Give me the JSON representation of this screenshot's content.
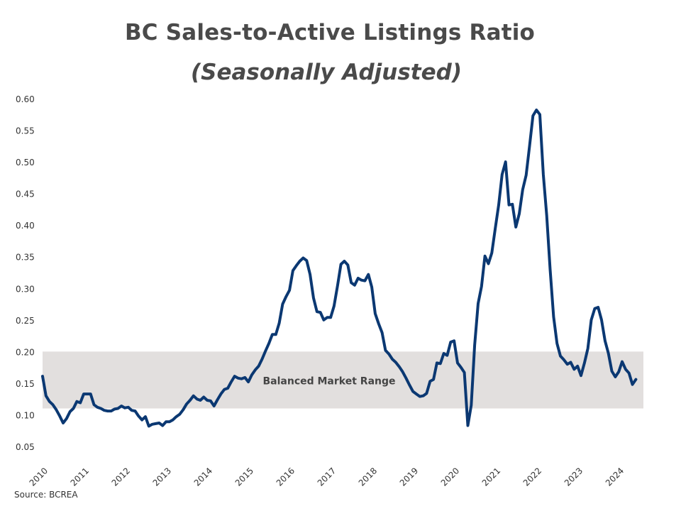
{
  "colors": {
    "line": "#0b3872",
    "band": "#e2dfde",
    "text": "#4a4a4a",
    "axis_text": "#333333"
  },
  "chart_data": {
    "type": "line",
    "title": "BC Sales-to-Active Listings Ratio",
    "subtitle": "(Seasonally Adjusted)",
    "xlabel": "",
    "ylabel": "",
    "ylim": [
      0.05,
      0.6
    ],
    "yticks": [
      "0.05",
      "0.10",
      "0.15",
      "0.20",
      "0.25",
      "0.30",
      "0.35",
      "0.40",
      "0.45",
      "0.50",
      "0.55",
      "0.60"
    ],
    "xlim": [
      2010.0,
      2024.6
    ],
    "xticks": [
      "2010",
      "2011",
      "2012",
      "2013",
      "2014",
      "2015",
      "2016",
      "2017",
      "2018",
      "2019",
      "2020",
      "2021",
      "2022",
      "2023",
      "2024"
    ],
    "grid": false,
    "legend": "none",
    "band": {
      "label": "Balanced Market Range",
      "y_range": [
        0.11,
        0.2
      ]
    },
    "series": [
      {
        "x": [
          2010.0,
          2010.083,
          2010.167,
          2010.25,
          2010.333,
          2010.417,
          2010.5,
          2010.583,
          2010.667,
          2010.75,
          2010.833,
          2010.917,
          2011.0,
          2011.083,
          2011.167,
          2011.25,
          2011.333,
          2011.417,
          2011.5,
          2011.583,
          2011.667,
          2011.75,
          2011.833,
          2011.917,
          2012.0,
          2012.083,
          2012.167,
          2012.25,
          2012.333,
          2012.417,
          2012.5,
          2012.583,
          2012.667,
          2012.75,
          2012.833,
          2012.917,
          2013.0,
          2013.083,
          2013.167,
          2013.25,
          2013.333,
          2013.417,
          2013.5,
          2013.583,
          2013.667,
          2013.75,
          2013.833,
          2013.917,
          2014.0,
          2014.083,
          2014.167,
          2014.25,
          2014.333,
          2014.417,
          2014.5,
          2014.583,
          2014.667,
          2014.75,
          2014.833,
          2014.917,
          2015.0,
          2015.083,
          2015.167,
          2015.25,
          2015.333,
          2015.417,
          2015.5,
          2015.583,
          2015.667,
          2015.75,
          2015.833,
          2015.917,
          2016.0,
          2016.083,
          2016.167,
          2016.25,
          2016.333,
          2016.417,
          2016.5,
          2016.583,
          2016.667,
          2016.75,
          2016.833,
          2016.917,
          2017.0,
          2017.083,
          2017.167,
          2017.25,
          2017.333,
          2017.417,
          2017.5,
          2017.583,
          2017.667,
          2017.75,
          2017.833,
          2017.917,
          2018.0,
          2018.083,
          2018.167,
          2018.25,
          2018.333,
          2018.417,
          2018.5,
          2018.583,
          2018.667,
          2018.75,
          2018.833,
          2018.917,
          2019.0,
          2019.083,
          2019.167,
          2019.25,
          2019.333,
          2019.417,
          2019.5,
          2019.583,
          2019.667,
          2019.75,
          2019.833,
          2019.917,
          2020.0,
          2020.083,
          2020.167,
          2020.25,
          2020.333,
          2020.417,
          2020.5,
          2020.583,
          2020.667,
          2020.75,
          2020.833,
          2020.917,
          2021.0,
          2021.083,
          2021.167,
          2021.25,
          2021.333,
          2021.417,
          2021.5,
          2021.583,
          2021.667,
          2021.75,
          2021.833,
          2021.917,
          2022.0,
          2022.083,
          2022.167,
          2022.25,
          2022.333,
          2022.417,
          2022.5,
          2022.583,
          2022.667,
          2022.75,
          2022.833,
          2022.917,
          2023.0,
          2023.083,
          2023.167,
          2023.25,
          2023.333,
          2023.417,
          2023.5,
          2023.583,
          2023.667,
          2023.75,
          2023.833,
          2023.917,
          2024.0,
          2024.083,
          2024.167,
          2024.25,
          2024.333,
          2024.417
        ],
        "values": [
          0.161,
          0.13,
          0.121,
          0.116,
          0.108,
          0.098,
          0.087,
          0.094,
          0.105,
          0.11,
          0.121,
          0.119,
          0.133,
          0.133,
          0.133,
          0.116,
          0.112,
          0.11,
          0.107,
          0.106,
          0.106,
          0.109,
          0.11,
          0.114,
          0.111,
          0.112,
          0.107,
          0.106,
          0.098,
          0.092,
          0.097,
          0.082,
          0.085,
          0.086,
          0.087,
          0.083,
          0.089,
          0.089,
          0.092,
          0.097,
          0.101,
          0.108,
          0.117,
          0.123,
          0.13,
          0.125,
          0.123,
          0.128,
          0.123,
          0.122,
          0.114,
          0.124,
          0.133,
          0.14,
          0.142,
          0.152,
          0.161,
          0.158,
          0.157,
          0.159,
          0.152,
          0.163,
          0.171,
          0.177,
          0.188,
          0.201,
          0.213,
          0.227,
          0.227,
          0.245,
          0.275,
          0.287,
          0.297,
          0.328,
          0.336,
          0.343,
          0.348,
          0.344,
          0.322,
          0.285,
          0.263,
          0.262,
          0.25,
          0.254,
          0.254,
          0.272,
          0.304,
          0.338,
          0.343,
          0.337,
          0.309,
          0.305,
          0.316,
          0.313,
          0.312,
          0.322,
          0.302,
          0.26,
          0.244,
          0.23,
          0.202,
          0.196,
          0.188,
          0.183,
          0.176,
          0.168,
          0.158,
          0.147,
          0.137,
          0.133,
          0.129,
          0.13,
          0.134,
          0.153,
          0.156,
          0.182,
          0.181,
          0.197,
          0.194,
          0.215,
          0.217,
          0.182,
          0.175,
          0.167,
          0.083,
          0.115,
          0.21,
          0.276,
          0.303,
          0.351,
          0.339,
          0.356,
          0.395,
          0.432,
          0.48,
          0.5,
          0.432,
          0.433,
          0.397,
          0.418,
          0.456,
          0.479,
          0.525,
          0.573,
          0.582,
          0.575,
          0.48,
          0.415,
          0.33,
          0.255,
          0.213,
          0.193,
          0.187,
          0.18,
          0.183,
          0.172,
          0.177,
          0.162,
          0.182,
          0.205,
          0.25,
          0.268,
          0.27,
          0.25,
          0.217,
          0.197,
          0.169,
          0.16,
          0.168,
          0.184,
          0.172,
          0.166,
          0.148,
          0.156
        ]
      }
    ]
  },
  "footer": {
    "source": "Source: BCREA"
  }
}
